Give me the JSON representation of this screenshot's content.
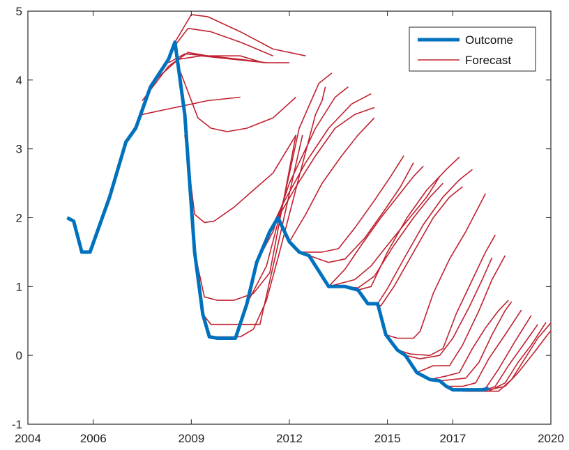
{
  "chart_data": {
    "type": "line",
    "xlim": [
      2004,
      2020
    ],
    "ylim": [
      -1,
      5
    ],
    "x_ticks": [
      2004,
      2006,
      2009,
      2012,
      2015,
      2017,
      2020
    ],
    "x_tick_labels": [
      "2004",
      "2006",
      "2009",
      "2012",
      "2015",
      "2017",
      "2020"
    ],
    "y_ticks": [
      -1,
      0,
      1,
      2,
      3,
      4,
      5
    ],
    "y_tick_labels": [
      "-1",
      "0",
      "1",
      "2",
      "3",
      "4",
      "5"
    ],
    "legend": {
      "position": "top-right",
      "entries": [
        {
          "label": "Outcome",
          "color": "#0072BD"
        },
        {
          "label": "Forecast",
          "color": "#C0202F"
        }
      ]
    },
    "series": [
      {
        "name": "Outcome",
        "color": "#0072BD",
        "points": [
          [
            2005.2,
            2.0
          ],
          [
            2005.4,
            1.95
          ],
          [
            2005.65,
            1.5
          ],
          [
            2005.9,
            1.5
          ],
          [
            2006.5,
            2.3
          ],
          [
            2007.0,
            3.1
          ],
          [
            2007.3,
            3.3
          ],
          [
            2007.75,
            3.9
          ],
          [
            2008.3,
            4.3
          ],
          [
            2008.5,
            4.55
          ],
          [
            2008.8,
            3.5
          ],
          [
            2009.1,
            1.5
          ],
          [
            2009.35,
            0.6
          ],
          [
            2009.55,
            0.27
          ],
          [
            2009.8,
            0.25
          ],
          [
            2010.1,
            0.25
          ],
          [
            2010.35,
            0.25
          ],
          [
            2010.7,
            0.75
          ],
          [
            2011.0,
            1.35
          ],
          [
            2011.4,
            1.8
          ],
          [
            2011.65,
            2.0
          ],
          [
            2012.0,
            1.65
          ],
          [
            2012.3,
            1.5
          ],
          [
            2012.6,
            1.45
          ],
          [
            2013.2,
            1.0
          ],
          [
            2013.7,
            1.0
          ],
          [
            2014.1,
            0.95
          ],
          [
            2014.4,
            0.75
          ],
          [
            2014.7,
            0.75
          ],
          [
            2014.95,
            0.3
          ],
          [
            2015.3,
            0.08
          ],
          [
            2015.55,
            0.0
          ],
          [
            2015.9,
            -0.25
          ],
          [
            2016.3,
            -0.35
          ],
          [
            2016.6,
            -0.37
          ],
          [
            2016.8,
            -0.45
          ],
          [
            2017.0,
            -0.5
          ],
          [
            2017.5,
            -0.5
          ],
          [
            2017.9,
            -0.5
          ],
          [
            2018.1,
            -0.48
          ]
        ]
      }
    ],
    "forecasts": [
      [
        [
          2007.0,
          3.1
        ],
        [
          2007.5,
          3.5
        ],
        [
          2008.5,
          3.6
        ],
        [
          2009.5,
          3.7
        ],
        [
          2010.5,
          3.75
        ]
      ],
      [
        [
          2007.5,
          3.7
        ],
        [
          2008.3,
          4.2
        ],
        [
          2008.9,
          4.4
        ],
        [
          2009.5,
          4.35
        ],
        [
          2010.5,
          4.35
        ],
        [
          2011.2,
          4.25
        ]
      ],
      [
        [
          2007.9,
          4.0
        ],
        [
          2008.6,
          4.3
        ],
        [
          2009.3,
          4.35
        ],
        [
          2010.3,
          4.3
        ],
        [
          2011.3,
          4.25
        ],
        [
          2012.0,
          4.25
        ]
      ],
      [
        [
          2008.3,
          4.25
        ],
        [
          2008.8,
          4.38
        ],
        [
          2009.5,
          4.35
        ],
        [
          2010.5,
          4.3
        ],
        [
          2011.3,
          4.25
        ]
      ],
      [
        [
          2008.5,
          4.5
        ],
        [
          2008.9,
          4.75
        ],
        [
          2009.6,
          4.7
        ],
        [
          2010.5,
          4.55
        ],
        [
          2011.5,
          4.35
        ]
      ],
      [
        [
          2008.5,
          4.55
        ],
        [
          2009.0,
          4.95
        ],
        [
          2009.5,
          4.92
        ],
        [
          2010.5,
          4.7
        ],
        [
          2011.5,
          4.45
        ],
        [
          2012.5,
          4.35
        ]
      ],
      [
        [
          2008.6,
          4.2
        ],
        [
          2009.2,
          3.45
        ],
        [
          2009.6,
          3.3
        ],
        [
          2010.1,
          3.25
        ],
        [
          2010.7,
          3.3
        ],
        [
          2011.5,
          3.45
        ],
        [
          2012.2,
          3.75
        ]
      ],
      [
        [
          2008.8,
          3.2
        ],
        [
          2009.1,
          2.05
        ],
        [
          2009.4,
          1.93
        ],
        [
          2009.7,
          1.95
        ],
        [
          2010.3,
          2.15
        ],
        [
          2010.9,
          2.4
        ],
        [
          2011.5,
          2.65
        ],
        [
          2012.2,
          3.2
        ]
      ],
      [
        [
          2009.1,
          1.5
        ],
        [
          2009.4,
          0.85
        ],
        [
          2009.8,
          0.8
        ],
        [
          2010.3,
          0.8
        ],
        [
          2010.9,
          0.9
        ],
        [
          2011.4,
          1.2
        ],
        [
          2012.2,
          3.2
        ]
      ],
      [
        [
          2009.35,
          0.6
        ],
        [
          2009.6,
          0.45
        ],
        [
          2010.5,
          0.45
        ],
        [
          2011.1,
          0.45
        ],
        [
          2011.6,
          1.5
        ],
        [
          2012.4,
          3.2
        ]
      ],
      [
        [
          2009.55,
          0.27
        ],
        [
          2010.5,
          0.27
        ],
        [
          2010.9,
          0.38
        ],
        [
          2011.3,
          0.8
        ],
        [
          2011.7,
          1.5
        ],
        [
          2012.3,
          2.6
        ],
        [
          2012.8,
          3.5
        ],
        [
          2013.0,
          3.7
        ],
        [
          2013.1,
          3.9
        ]
      ],
      [
        [
          2010.7,
          0.75
        ],
        [
          2011.3,
          1.3
        ],
        [
          2011.8,
          2.2
        ],
        [
          2012.3,
          3.3
        ],
        [
          2012.9,
          3.95
        ],
        [
          2013.3,
          4.1
        ]
      ],
      [
        [
          2011.0,
          1.35
        ],
        [
          2011.5,
          1.8
        ],
        [
          2012.0,
          2.5
        ],
        [
          2012.8,
          3.3
        ],
        [
          2013.4,
          3.75
        ],
        [
          2013.8,
          3.9
        ]
      ],
      [
        [
          2011.4,
          1.8
        ],
        [
          2011.8,
          2.2
        ],
        [
          2012.5,
          2.8
        ],
        [
          2013.2,
          3.3
        ],
        [
          2013.9,
          3.65
        ],
        [
          2014.5,
          3.8
        ]
      ],
      [
        [
          2011.65,
          2.0
        ],
        [
          2012.2,
          2.45
        ],
        [
          2012.8,
          2.9
        ],
        [
          2013.4,
          3.3
        ],
        [
          2014.0,
          3.5
        ],
        [
          2014.6,
          3.6
        ]
      ],
      [
        [
          2012.0,
          1.65
        ],
        [
          2012.5,
          2.05
        ],
        [
          2013.0,
          2.5
        ],
        [
          2013.6,
          2.9
        ],
        [
          2014.1,
          3.2
        ],
        [
          2014.6,
          3.45
        ]
      ],
      [
        [
          2012.3,
          1.5
        ],
        [
          2013.0,
          1.5
        ],
        [
          2013.5,
          1.55
        ],
        [
          2014.0,
          1.85
        ],
        [
          2014.6,
          2.25
        ],
        [
          2015.1,
          2.6
        ],
        [
          2015.5,
          2.9
        ]
      ],
      [
        [
          2012.6,
          1.45
        ],
        [
          2013.2,
          1.35
        ],
        [
          2013.7,
          1.4
        ],
        [
          2014.3,
          1.7
        ],
        [
          2014.9,
          2.1
        ],
        [
          2015.4,
          2.45
        ],
        [
          2015.8,
          2.8
        ]
      ],
      [
        [
          2013.2,
          1.0
        ],
        [
          2013.7,
          1.25
        ],
        [
          2014.2,
          1.6
        ],
        [
          2014.8,
          2.0
        ],
        [
          2015.3,
          2.3
        ],
        [
          2015.8,
          2.6
        ],
        [
          2016.1,
          2.75
        ]
      ],
      [
        [
          2013.2,
          1.0
        ],
        [
          2014.0,
          1.1
        ],
        [
          2014.5,
          1.3
        ],
        [
          2015.0,
          1.6
        ],
        [
          2015.6,
          1.95
        ],
        [
          2016.2,
          2.3
        ],
        [
          2016.6,
          2.6
        ]
      ],
      [
        [
          2013.7,
          1.0
        ],
        [
          2014.1,
          0.98
        ],
        [
          2014.6,
          1.15
        ],
        [
          2015.2,
          1.6
        ],
        [
          2015.8,
          2.0
        ],
        [
          2016.3,
          2.3
        ],
        [
          2016.7,
          2.5
        ]
      ],
      [
        [
          2014.1,
          0.95
        ],
        [
          2014.5,
          1.0
        ],
        [
          2015.0,
          1.5
        ],
        [
          2015.6,
          2.0
        ],
        [
          2016.2,
          2.4
        ],
        [
          2016.8,
          2.7
        ],
        [
          2017.2,
          2.88
        ]
      ],
      [
        [
          2014.4,
          0.75
        ],
        [
          2014.8,
          0.72
        ],
        [
          2015.2,
          1.0
        ],
        [
          2015.8,
          1.5
        ],
        [
          2016.4,
          2.0
        ],
        [
          2016.9,
          2.3
        ],
        [
          2017.3,
          2.45
        ]
      ],
      [
        [
          2014.7,
          0.75
        ],
        [
          2015.0,
          0.97
        ],
        [
          2015.5,
          1.4
        ],
        [
          2016.1,
          1.9
        ],
        [
          2016.7,
          2.3
        ],
        [
          2017.2,
          2.55
        ],
        [
          2017.6,
          2.7
        ]
      ],
      [
        [
          2014.95,
          0.3
        ],
        [
          2015.3,
          0.25
        ],
        [
          2015.8,
          0.25
        ],
        [
          2016.0,
          0.35
        ],
        [
          2016.4,
          0.9
        ],
        [
          2016.9,
          1.4
        ],
        [
          2017.4,
          1.8
        ],
        [
          2018.0,
          2.35
        ]
      ],
      [
        [
          2015.3,
          0.08
        ],
        [
          2015.7,
          0.02
        ],
        [
          2016.3,
          0.0
        ],
        [
          2016.7,
          0.1
        ],
        [
          2017.1,
          0.6
        ],
        [
          2017.6,
          1.1
        ],
        [
          2018.0,
          1.5
        ],
        [
          2018.3,
          1.75
        ]
      ],
      [
        [
          2015.55,
          0.0
        ],
        [
          2016.0,
          -0.05
        ],
        [
          2016.6,
          0.0
        ],
        [
          2017.0,
          0.25
        ],
        [
          2017.5,
          0.7
        ],
        [
          2017.9,
          1.1
        ],
        [
          2018.2,
          1.42
        ]
      ],
      [
        [
          2015.9,
          -0.25
        ],
        [
          2016.4,
          -0.15
        ],
        [
          2016.9,
          -0.15
        ],
        [
          2017.3,
          0.15
        ],
        [
          2017.8,
          0.65
        ],
        [
          2018.2,
          1.1
        ],
        [
          2018.6,
          1.45
        ]
      ],
      [
        [
          2016.3,
          -0.35
        ],
        [
          2016.8,
          -0.3
        ],
        [
          2017.2,
          -0.25
        ],
        [
          2017.6,
          0.1
        ],
        [
          2018.0,
          0.4
        ],
        [
          2018.4,
          0.65
        ],
        [
          2018.7,
          0.8
        ]
      ],
      [
        [
          2016.6,
          -0.37
        ],
        [
          2017.0,
          -0.35
        ],
        [
          2017.4,
          -0.33
        ],
        [
          2017.8,
          -0.1
        ],
        [
          2018.2,
          0.3
        ],
        [
          2018.6,
          0.65
        ],
        [
          2018.8,
          0.78
        ]
      ],
      [
        [
          2016.8,
          -0.45
        ],
        [
          2017.3,
          -0.45
        ],
        [
          2017.7,
          -0.4
        ],
        [
          2018.1,
          -0.05
        ],
        [
          2018.6,
          0.3
        ],
        [
          2019.1,
          0.66
        ]
      ],
      [
        [
          2017.0,
          -0.5
        ],
        [
          2017.6,
          -0.5
        ],
        [
          2018.0,
          -0.48
        ],
        [
          2018.4,
          -0.2
        ],
        [
          2018.9,
          0.2
        ],
        [
          2019.4,
          0.58
        ]
      ],
      [
        [
          2017.3,
          -0.52
        ],
        [
          2017.9,
          -0.52
        ],
        [
          2018.3,
          -0.45
        ],
        [
          2018.7,
          -0.15
        ],
        [
          2019.3,
          0.25
        ],
        [
          2019.6,
          0.45
        ]
      ],
      [
        [
          2017.5,
          -0.52
        ],
        [
          2018.1,
          -0.52
        ],
        [
          2018.6,
          -0.4
        ],
        [
          2019.0,
          -0.1
        ],
        [
          2019.4,
          0.15
        ],
        [
          2019.85,
          0.48
        ]
      ],
      [
        [
          2017.9,
          -0.52
        ],
        [
          2018.4,
          -0.52
        ],
        [
          2018.8,
          -0.35
        ],
        [
          2019.2,
          -0.05
        ],
        [
          2019.6,
          0.25
        ],
        [
          2020.05,
          0.5
        ]
      ],
      [
        [
          2018.1,
          -0.5
        ],
        [
          2018.6,
          -0.45
        ],
        [
          2019.0,
          -0.25
        ],
        [
          2019.5,
          0.05
        ],
        [
          2019.9,
          0.3
        ],
        [
          2020.25,
          0.5
        ]
      ]
    ]
  }
}
